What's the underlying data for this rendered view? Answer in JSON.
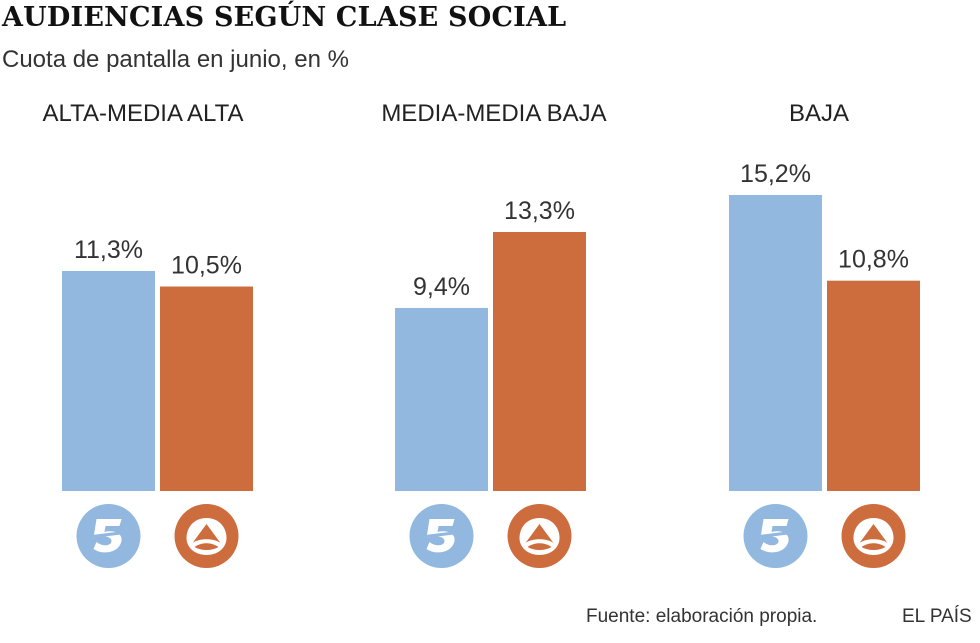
{
  "title": "AUDIENCIAS SEGÚN CLASE SOCIAL",
  "subtitle": "Cuota de pantalla en junio, en %",
  "source": "Fuente: elaboración propia.",
  "brand": "EL PAÍS",
  "colors": {
    "telecinco": "#93b8df",
    "antena3": "#cd6d3e"
  },
  "icons": [
    "telecinco-logo-icon",
    "antena3-logo-icon"
  ],
  "chart_data": {
    "type": "bar",
    "categories": [
      "ALTA-MEDIA ALTA",
      "MEDIA-MEDIA BAJA",
      "BAJA"
    ],
    "series": [
      {
        "values": [
          11.3,
          9.4,
          15.2
        ],
        "labels": [
          "11,3%",
          "9,4%",
          "15,2%"
        ],
        "color": "#93b8df",
        "icon": "telecinco-logo-icon"
      },
      {
        "values": [
          10.5,
          13.3,
          10.8
        ],
        "labels": [
          "10,5%",
          "13,3%",
          "10,8%"
        ],
        "color": "#cd6d3e",
        "icon": "antena3-logo-icon"
      }
    ],
    "ylim": [
      0,
      15.2
    ],
    "grid": false,
    "legend": "none"
  }
}
